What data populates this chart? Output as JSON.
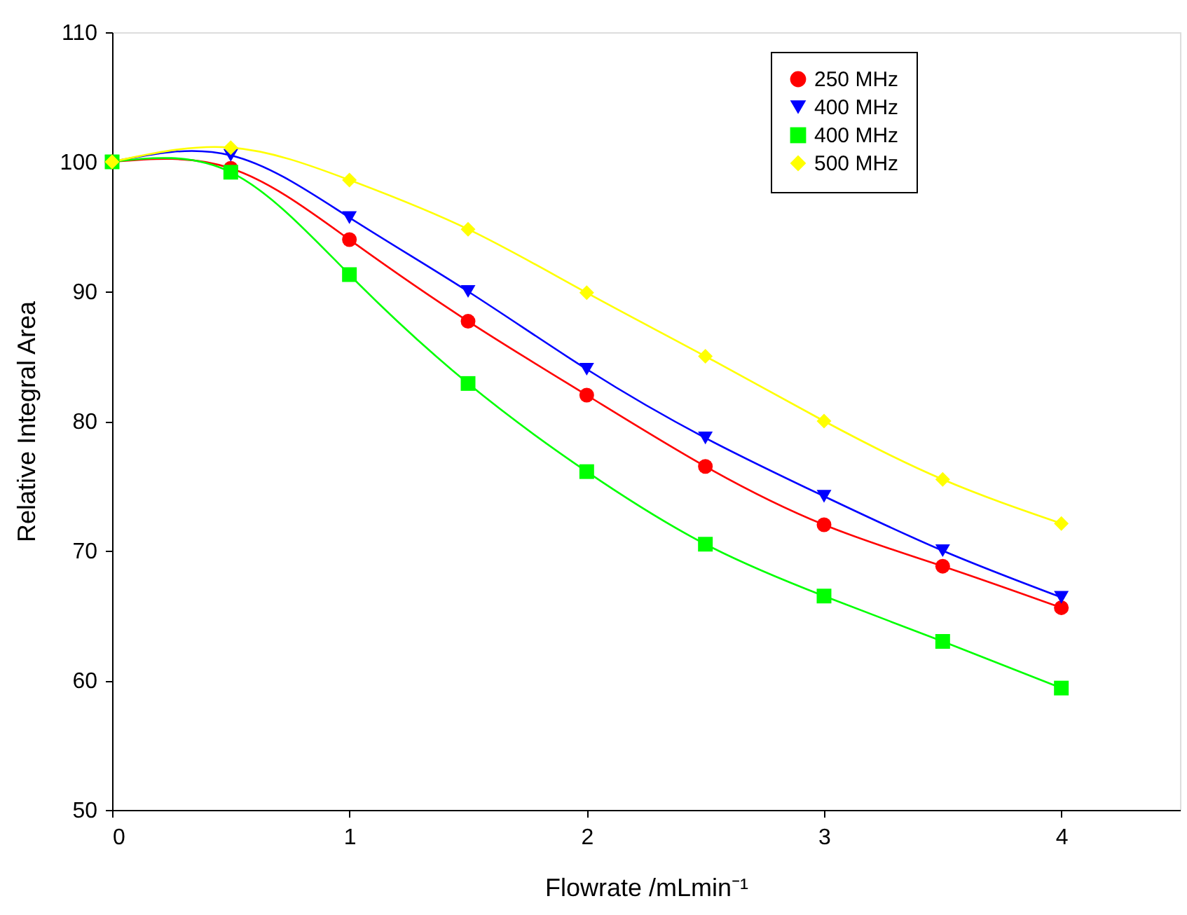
{
  "chart_data": {
    "type": "line",
    "xlabel": "Flowrate /mLmin⁻¹",
    "ylabel": "Relative Integral Area",
    "x": [
      0,
      0.5,
      1,
      1.5,
      2,
      2.5,
      3,
      3.5,
      4
    ],
    "series": [
      {
        "name": "250 MHz",
        "color": "#ff0000",
        "marker": "circle",
        "values": [
          100,
          99.5,
          94,
          87.7,
          82,
          76.5,
          72,
          68.8,
          65.6
        ]
      },
      {
        "name": "400 MHz",
        "color": "#0000ff",
        "marker": "triangle",
        "values": [
          100,
          100.5,
          95.7,
          90,
          84,
          78.7,
          74.2,
          70,
          66.4
        ]
      },
      {
        "name": "400 MHz",
        "color": "#00ff00",
        "marker": "square",
        "values": [
          100,
          99.2,
          91.3,
          82.9,
          76.1,
          70.5,
          66.5,
          63,
          59.4
        ]
      },
      {
        "name": "500 MHz",
        "color": "#ffff00",
        "marker": "diamond",
        "values": [
          100,
          101.1,
          98.6,
          94.8,
          89.9,
          85,
          80,
          75.5,
          72.1
        ]
      }
    ],
    "xlim": [
      0,
      4.5
    ],
    "xticks": [
      0,
      1,
      2,
      3,
      4
    ],
    "ylim": [
      50,
      110
    ],
    "yticks": [
      50,
      60,
      70,
      80,
      90,
      100,
      110
    ],
    "grid": false,
    "legend": "top right",
    "line_style": "solid"
  }
}
